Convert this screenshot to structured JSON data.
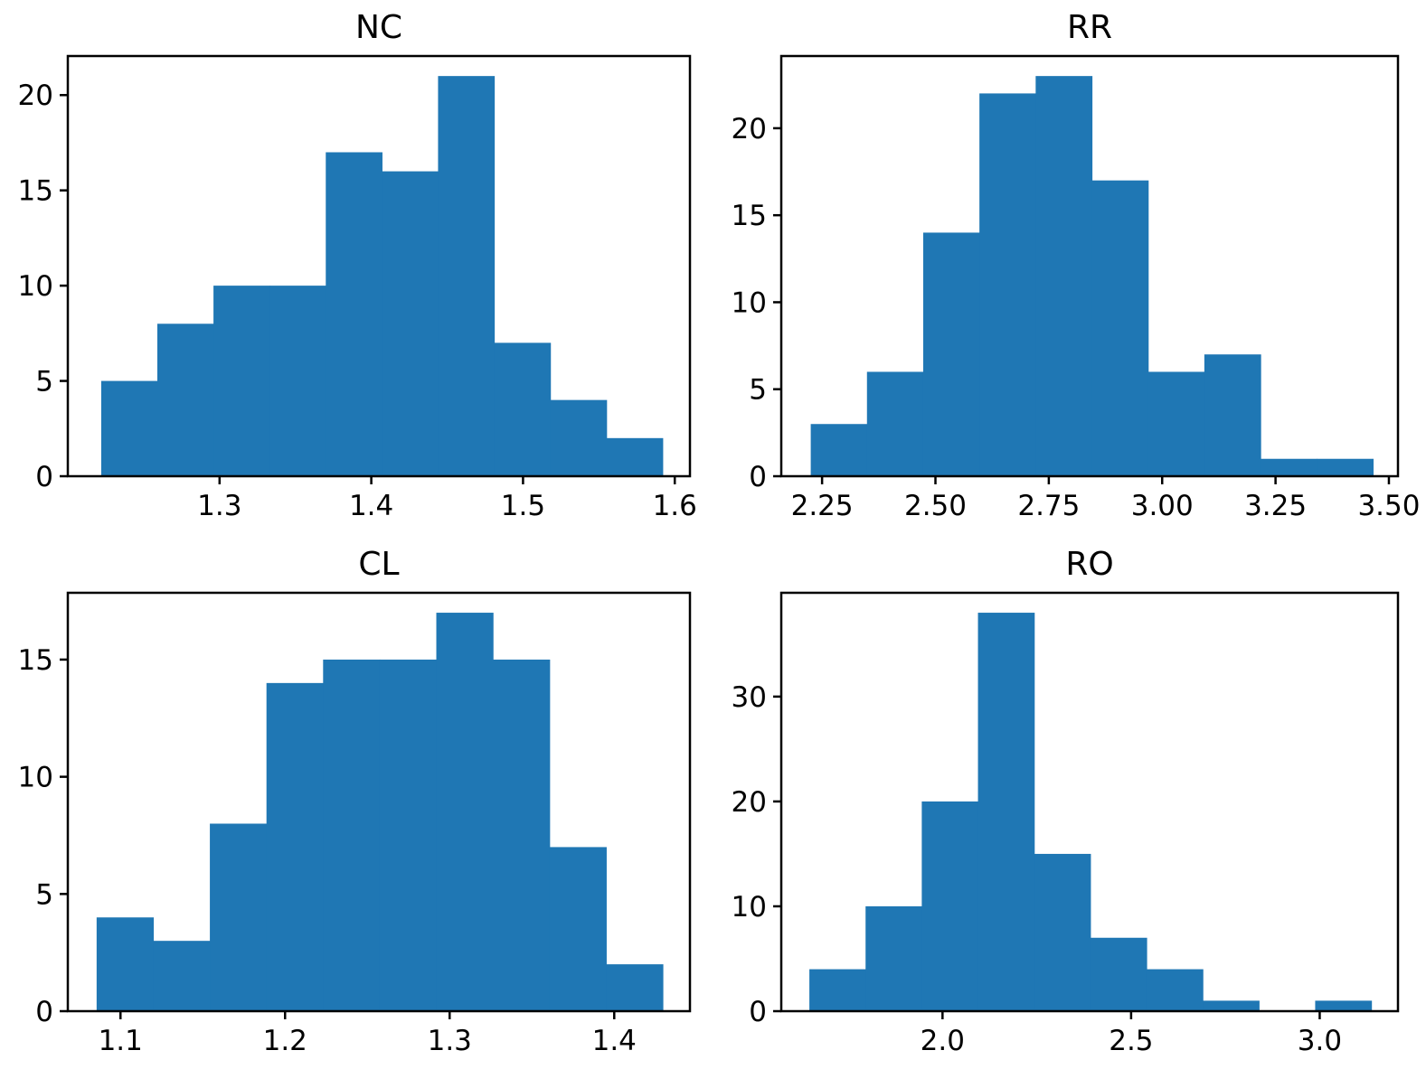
{
  "chart_data": [
    {
      "type": "bar",
      "title": "NC",
      "xlabel": "",
      "ylabel": "",
      "xlim": [
        1.2,
        1.61
      ],
      "ylim": [
        0,
        22.05
      ],
      "xticks": [
        1.3,
        1.4,
        1.5,
        1.6
      ],
      "xtick_labels": [
        "1.3",
        "1.4",
        "1.5",
        "1.6"
      ],
      "yticks": [
        0,
        5,
        10,
        15,
        20
      ],
      "ytick_labels": [
        "0",
        "5",
        "10",
        "15",
        "20"
      ],
      "bin_edges": [
        1.222,
        1.259,
        1.296,
        1.333,
        1.37,
        1.407,
        1.444,
        1.481,
        1.518,
        1.555,
        1.592
      ],
      "values": [
        5,
        8,
        10,
        10,
        17,
        16,
        21,
        7,
        4,
        2
      ],
      "color": "#1f77b4"
    },
    {
      "type": "bar",
      "title": "RR",
      "xlabel": "",
      "ylabel": "",
      "xlim": [
        2.16,
        3.52
      ],
      "ylim": [
        0,
        24.15
      ],
      "xticks": [
        2.25,
        2.5,
        2.75,
        3.0,
        3.25,
        3.5
      ],
      "xtick_labels": [
        "2.25",
        "2.50",
        "2.75",
        "3.00",
        "3.25",
        "3.50"
      ],
      "yticks": [
        0,
        5,
        10,
        15,
        20
      ],
      "ytick_labels": [
        "0",
        "5",
        "10",
        "15",
        "20"
      ],
      "bin_edges": [
        2.225,
        2.349,
        2.473,
        2.597,
        2.721,
        2.845,
        2.969,
        3.093,
        3.217,
        3.341,
        3.465
      ],
      "values": [
        3,
        6,
        14,
        22,
        23,
        17,
        6,
        7,
        1,
        1
      ],
      "color": "#1f77b4"
    },
    {
      "type": "bar",
      "title": "CL",
      "xlabel": "",
      "ylabel": "",
      "xlim": [
        1.068,
        1.446
      ],
      "ylim": [
        0,
        17.85
      ],
      "xticks": [
        1.1,
        1.2,
        1.3,
        1.4
      ],
      "xtick_labels": [
        "1.1",
        "1.2",
        "1.3",
        "1.4"
      ],
      "yticks": [
        0,
        5,
        10,
        15
      ],
      "ytick_labels": [
        "0",
        "5",
        "10",
        "15"
      ],
      "bin_edges": [
        1.0855,
        1.1199,
        1.1543,
        1.1887,
        1.2231,
        1.2575,
        1.2919,
        1.3263,
        1.3607,
        1.3951,
        1.4295
      ],
      "values": [
        4,
        3,
        8,
        14,
        15,
        15,
        17,
        15,
        7,
        2
      ],
      "color": "#1f77b4"
    },
    {
      "type": "bar",
      "title": "RO",
      "xlabel": "",
      "ylabel": "",
      "xlim": [
        1.5725,
        3.2075
      ],
      "ylim": [
        0,
        39.9
      ],
      "xticks": [
        2.0,
        2.5,
        3.0
      ],
      "xtick_labels": [
        "2.0",
        "2.5",
        "3.0"
      ],
      "yticks": [
        0,
        10,
        20,
        30
      ],
      "ytick_labels": [
        "0",
        "10",
        "20",
        "30"
      ],
      "bin_edges": [
        1.647,
        1.796,
        1.945,
        2.094,
        2.243,
        2.392,
        2.541,
        2.69,
        2.839,
        2.988,
        3.137
      ],
      "values": [
        4,
        10,
        20,
        38,
        15,
        7,
        4,
        1,
        0,
        1
      ],
      "color": "#1f77b4"
    }
  ]
}
